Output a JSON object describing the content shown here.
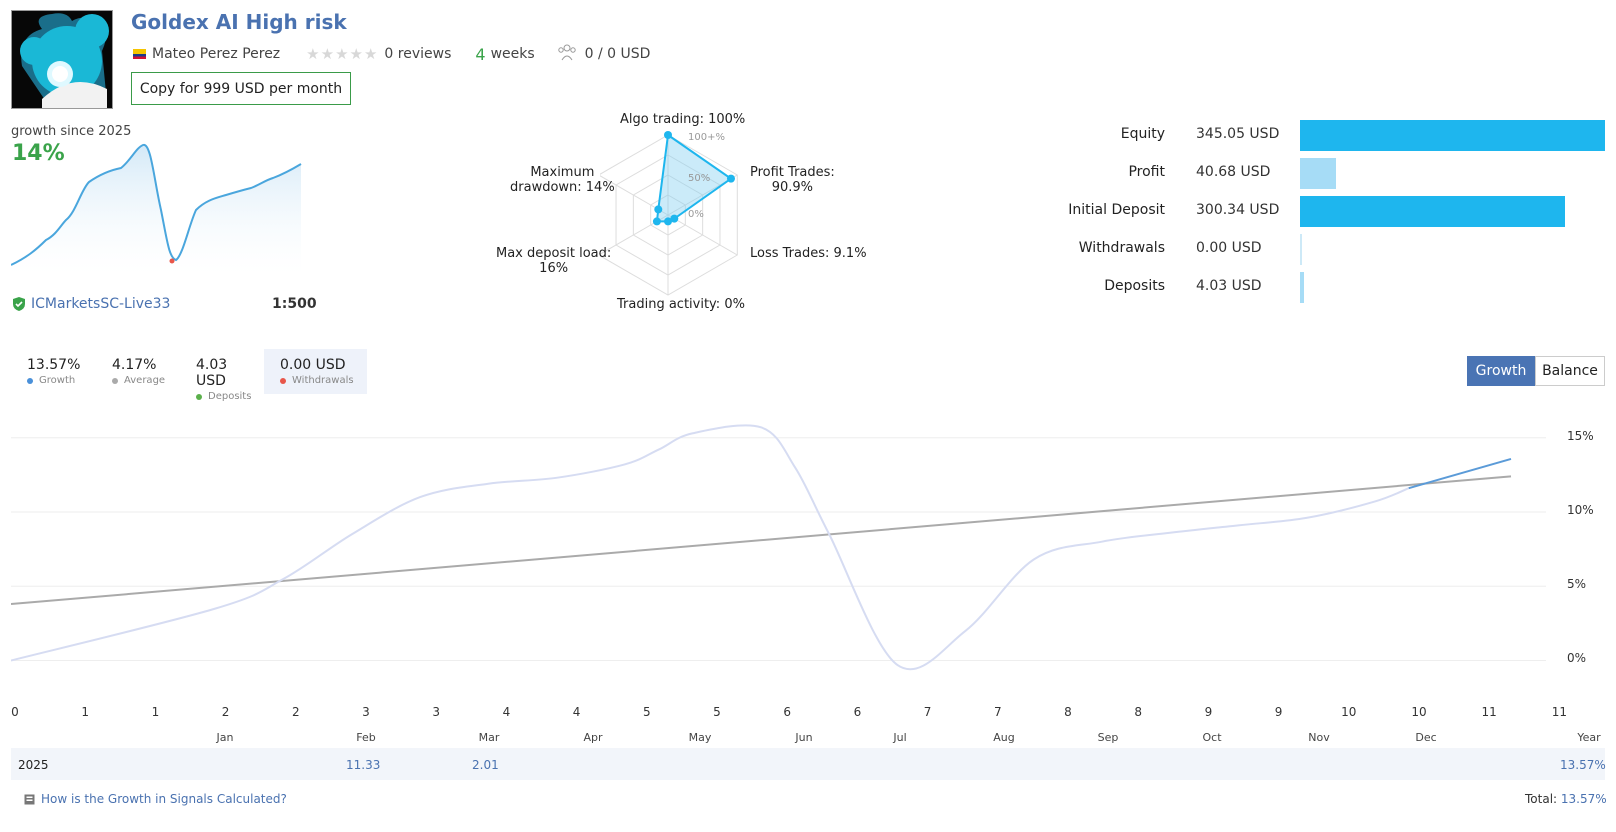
{
  "header": {
    "title": "Goldex AI High risk",
    "author": "Mateo Perez Perez",
    "reviews": "0 reviews",
    "weeks_num": "4",
    "weeks_label": "weeks",
    "subscribers": "0 / 0 USD",
    "copy_button": "Copy for 999 USD per month"
  },
  "summary": {
    "growth_label": "growth since 2025",
    "growth_value": "14%",
    "server": "ICMarketsSC-Live33",
    "leverage": "1:500"
  },
  "radar": {
    "algo": "Algo trading: 100%",
    "profit_trades_1": "Profit Trades:",
    "profit_trades_2": "90.9%",
    "loss_trades": "Loss Trades: 9.1%",
    "activity": "Trading activity: 0%",
    "deposit_load_1": "Max deposit load:",
    "deposit_load_2": "16%",
    "drawdown_1": "Maximum",
    "drawdown_2": "drawdown: 14%",
    "scale_100": "100+%",
    "scale_50": "50%",
    "scale_0": "0%",
    "values": {
      "algo": 100,
      "profit_trades": 90.9,
      "loss_trades": 9.1,
      "activity": 0,
      "deposit_load": 16,
      "drawdown": 14
    }
  },
  "stats": [
    {
      "label": "Equity",
      "value": "345.05 USD",
      "amount": 345.05,
      "color": "#1eb6ee"
    },
    {
      "label": "Profit",
      "value": "40.68 USD",
      "amount": 40.68,
      "color": "#a6dcf6"
    },
    {
      "label": "Initial Deposit",
      "value": "300.34 USD",
      "amount": 300.34,
      "color": "#1eb6ee"
    },
    {
      "label": "Withdrawals",
      "value": "0.00 USD",
      "amount": 0.0,
      "color": "#cde9f7"
    },
    {
      "label": "Deposits",
      "value": "4.03 USD",
      "amount": 4.03,
      "color": "#a6dcf6"
    }
  ],
  "legend": [
    {
      "value": "13.57%",
      "label": "Growth",
      "color": "#4a90d9"
    },
    {
      "value": "4.17%",
      "label": "Average",
      "color": "#aaaaaa"
    },
    {
      "value": "4.03 USD",
      "label": "Deposits",
      "color": "#5bb04b"
    },
    {
      "value": "0.00 USD",
      "label": "Withdrawals",
      "color": "#e8564a"
    }
  ],
  "toggle": {
    "growth": "Growth",
    "balance": "Balance"
  },
  "chart_data": {
    "type": "line",
    "y_ticks": [
      "15%",
      "10%",
      "5%",
      "0%"
    ],
    "ylim": [
      -2,
      17
    ],
    "x_tick_labels": [
      "0",
      "1",
      "1",
      "2",
      "2",
      "3",
      "3",
      "4",
      "4",
      "5",
      "5",
      "6",
      "6",
      "7",
      "7",
      "8",
      "8",
      "9",
      "9",
      "10",
      "10",
      "11",
      "11"
    ],
    "months": [
      "Jan",
      "Feb",
      "Mar",
      "Apr",
      "May",
      "Jun",
      "Jul",
      "Aug",
      "Sep",
      "Oct",
      "Nov",
      "Dec",
      "Year"
    ],
    "series": [
      {
        "name": "Growth",
        "x": [
          0,
          3,
          5,
          7,
          9,
          10.5,
          11
        ],
        "y": [
          0,
          3.5,
          8,
          11.5,
          12.5,
          14,
          15.8
        ]
      },
      {
        "name": "Average",
        "x": [
          0,
          22
        ],
        "y": [
          3.8,
          12.4
        ]
      }
    ],
    "growth_faded_x": [
      0,
      3,
      4,
      5,
      6,
      7,
      8,
      9,
      9.5,
      10,
      11,
      11.5,
      12,
      13,
      14,
      15,
      16,
      17,
      18,
      19,
      20,
      20.5
    ],
    "growth_faded_y": [
      0,
      3.5,
      5.5,
      8.5,
      11,
      11.9,
      12.3,
      13.2,
      14.2,
      15.3,
      15.7,
      13,
      8.5,
      -0.3,
      2,
      6.8,
      8,
      8.6,
      9.1,
      9.6,
      10.7,
      11.6
    ],
    "growth_recent_x": [
      20.5,
      22
    ],
    "growth_recent_y": [
      11.6,
      13.57
    ]
  },
  "table": {
    "year": "2025",
    "feb": "11.33",
    "mar": "2.01",
    "year_total": "13.57%"
  },
  "footer": {
    "link": "How is the Growth in Signals Calculated?",
    "total_label": "Total:",
    "total_value": "13.57%"
  }
}
